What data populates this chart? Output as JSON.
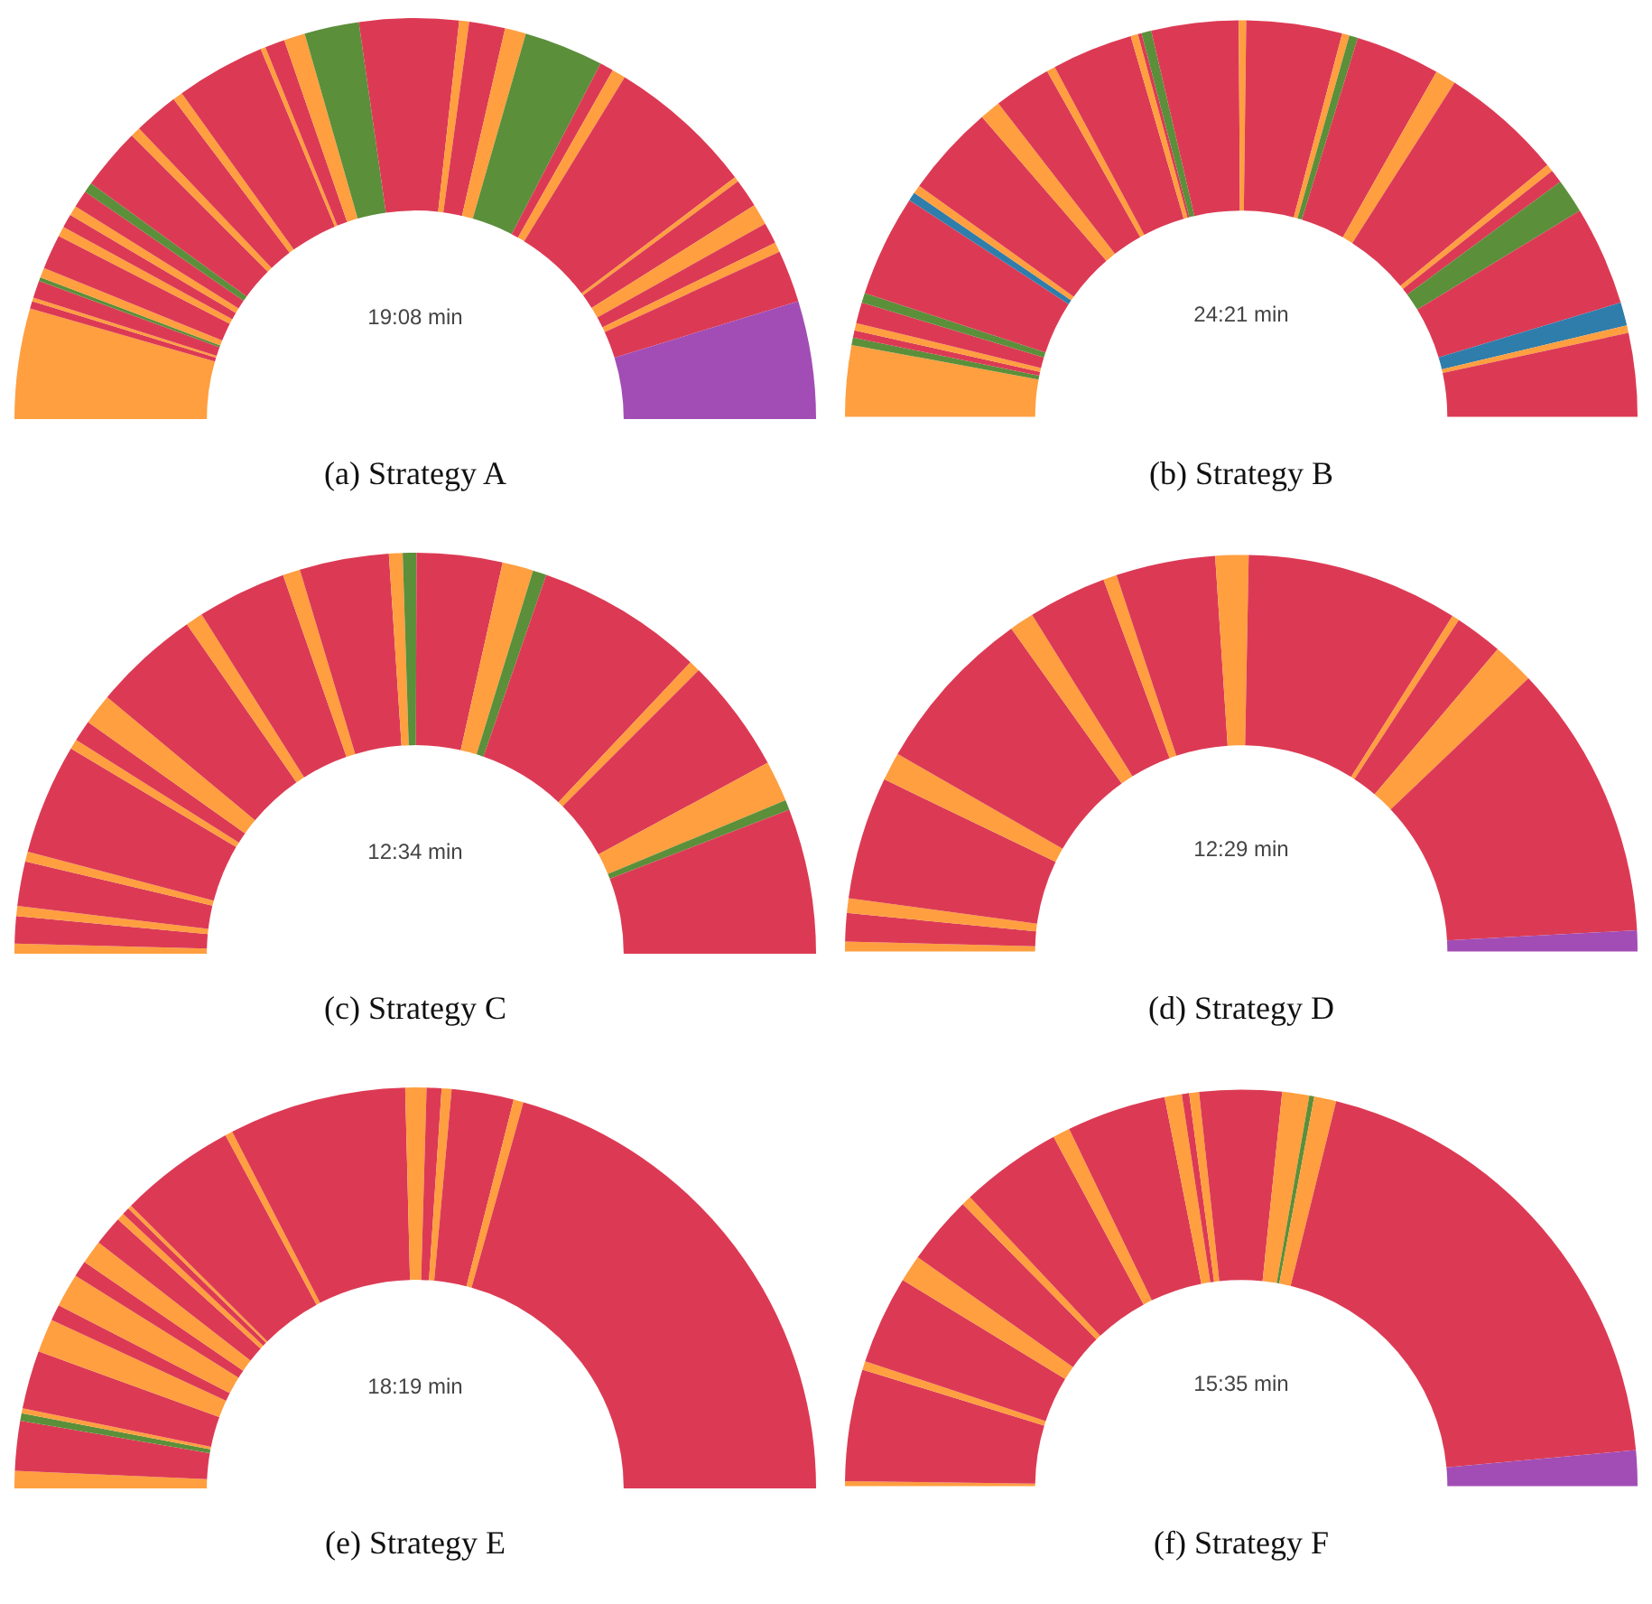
{
  "chart_data": [
    {
      "type": "donut",
      "title": "(a) Strategy A",
      "annotations": [
        "19:08 min"
      ],
      "categories": [
        null,
        null,
        null,
        null,
        null,
        null,
        null,
        null,
        null,
        null,
        null,
        null,
        null,
        null,
        null,
        null,
        null,
        null,
        null,
        null,
        null,
        null,
        null,
        null,
        null,
        null,
        null,
        null,
        null,
        null,
        null,
        null,
        null,
        null,
        null,
        null
      ],
      "values": [
        8.9,
        0.6,
        0.3,
        1.4,
        0.3,
        0.8,
        2.8,
        0.8,
        1.1,
        0.8,
        1.4,
        0.8,
        5.0,
        0.8,
        3.6,
        0.8,
        7.2,
        0.4,
        1.6,
        1.7,
        4.4,
        8.0,
        0.8,
        2.9,
        1.7,
        6.4,
        1.1,
        1.1,
        11.9,
        0.4,
        2.3,
        1.7,
        1.7,
        0.8,
        4.2,
        9.5
      ],
      "colors": [
        "#ff9f40",
        "#dc3a54",
        "#ff9f40",
        "#dc3a54",
        "#5b8f3a",
        "#ff9f40",
        "#dc3a54",
        "#ff9f40",
        "#dc3a54",
        "#ff9f40",
        "#dc3a54",
        "#5b8f3a",
        "#dc3a54",
        "#ff9f40",
        "#dc3a54",
        "#ff9f40",
        "#dc3a54",
        "#ff9f40",
        "#dc3a54",
        "#ff9f40",
        "#5b8f3a",
        "#dc3a54",
        "#ff9f40",
        "#dc3a54",
        "#ff9f40",
        "#5b8f3a",
        "#dc3a54",
        "#ff9f40",
        "#dc3a54",
        "#ff9f40",
        "#dc3a54",
        "#ff9f40",
        "#dc3a54",
        "#ff9f40",
        "#dc3a54",
        "#a24db5"
      ]
    },
    {
      "type": "donut",
      "title": "(b) Strategy B",
      "annotations": [
        "24:21 min"
      ],
      "categories": [
        null,
        null,
        null,
        null,
        null,
        null,
        null,
        null,
        null,
        null,
        null,
        null,
        null,
        null,
        null,
        null,
        null,
        null,
        null,
        null,
        null,
        null,
        null,
        null,
        null,
        null,
        null,
        null,
        null,
        null,
        null,
        null
      ],
      "values": [
        5.8,
        0.6,
        0.6,
        0.6,
        1.7,
        0.8,
        8.3,
        0.7,
        0.7,
        7.5,
        1.7,
        4.7,
        0.7,
        6.6,
        0.6,
        0.3,
        0.8,
        7.1,
        0.6,
        7.8,
        0.6,
        0.7,
        6.9,
        1.7,
        10.0,
        0.6,
        1.1,
        2.8,
        8.1,
        1.9,
        0.6,
        6.8
      ],
      "colors": [
        "#ff9f40",
        "#5b8f3a",
        "#dc3a54",
        "#ff9f40",
        "#dc3a54",
        "#5b8f3a",
        "#dc3a54",
        "#2f7dab",
        "#ff9f40",
        "#dc3a54",
        "#ff9f40",
        "#dc3a54",
        "#ff9f40",
        "#dc3a54",
        "#ff9f40",
        "#dc3a54",
        "#5b8f3a",
        "#dc3a54",
        "#ff9f40",
        "#dc3a54",
        "#ff9f40",
        "#5b8f3a",
        "#dc3a54",
        "#ff9f40",
        "#dc3a54",
        "#ff9f40",
        "#dc3a54",
        "#5b8f3a",
        "#dc3a54",
        "#2f7dab",
        "#ff9f40",
        "#dc3a54"
      ]
    },
    {
      "type": "donut",
      "title": "(c) Strategy C",
      "annotations": [
        "12:34 min"
      ],
      "categories": [
        null,
        null,
        null,
        null,
        null,
        null,
        null,
        null,
        null,
        null,
        null,
        null,
        null,
        null,
        null,
        null,
        null,
        null,
        null,
        null,
        null,
        null,
        null,
        null,
        null
      ],
      "values": [
        0.8,
        2.2,
        0.8,
        3.6,
        0.8,
        8.9,
        0.8,
        1.7,
        2.5,
        8.6,
        1.4,
        7.2,
        1.4,
        7.2,
        1.1,
        1.1,
        6.9,
        2.5,
        1.1,
        13.5,
        0.9,
        9.2,
        3.3,
        0.8,
        11.7
      ],
      "colors": [
        "#ff9f40",
        "#dc3a54",
        "#ff9f40",
        "#dc3a54",
        "#ff9f40",
        "#dc3a54",
        "#ff9f40",
        "#dc3a54",
        "#ff9f40",
        "#dc3a54",
        "#ff9f40",
        "#dc3a54",
        "#ff9f40",
        "#dc3a54",
        "#ff9f40",
        "#5b8f3a",
        "#dc3a54",
        "#ff9f40",
        "#5b8f3a",
        "#dc3a54",
        "#ff9f40",
        "#dc3a54",
        "#ff9f40",
        "#5b8f3a",
        "#dc3a54"
      ]
    },
    {
      "type": "donut",
      "title": "(d) Strategy D",
      "annotations": [
        "12:29 min"
      ],
      "categories": [
        null,
        null,
        null,
        null,
        null,
        null,
        null,
        null,
        null,
        null,
        null,
        null,
        null,
        null,
        null,
        null,
        null
      ],
      "values": [
        0.8,
        2.3,
        1.2,
        10.0,
        2.3,
        13.7,
        2.0,
        6.4,
        1.1,
        8.1,
        2.7,
        17.3,
        0.6,
        3.9,
        3.4,
        22.5,
        1.7
      ],
      "colors": [
        "#ff9f40",
        "#dc3a54",
        "#ff9f40",
        "#dc3a54",
        "#ff9f40",
        "#dc3a54",
        "#ff9f40",
        "#dc3a54",
        "#ff9f40",
        "#dc3a54",
        "#ff9f40",
        "#dc3a54",
        "#ff9f40",
        "#dc3a54",
        "#ff9f40",
        "#dc3a54",
        "#a24db5"
      ]
    },
    {
      "type": "donut",
      "title": "(e) Strategy E",
      "annotations": [
        "18:19 min"
      ],
      "categories": [
        null,
        null,
        null,
        null,
        null,
        null,
        null,
        null,
        null,
        null,
        null,
        null,
        null,
        null,
        null,
        null,
        null,
        null,
        null,
        null,
        null,
        null,
        null
      ],
      "values": [
        1.4,
        4.0,
        0.6,
        0.4,
        4.7,
        2.7,
        1.3,
        2.7,
        1.3,
        1.9,
        2.4,
        0.6,
        0.6,
        0.3,
        9.4,
        0.6,
        14.3,
        1.7,
        1.2,
        0.8,
        5.0,
        0.8,
        41.3
      ],
      "colors": [
        "#ff9f40",
        "#dc3a54",
        "#5b8f3a",
        "#ff9f40",
        "#dc3a54",
        "#ff9f40",
        "#dc3a54",
        "#ff9f40",
        "#dc3a54",
        "#ff9f40",
        "#dc3a54",
        "#ff9f40",
        "#dc3a54",
        "#ff9f40",
        "#dc3a54",
        "#ff9f40",
        "#dc3a54",
        "#ff9f40",
        "#dc3a54",
        "#ff9f40",
        "#dc3a54",
        "#ff9f40",
        "#dc3a54"
      ]
    },
    {
      "type": "donut",
      "title": "(f) Strategy F",
      "annotations": [
        "15:35 min"
      ],
      "categories": [
        null,
        null,
        null,
        null,
        null,
        null,
        null,
        null,
        null,
        null,
        null,
        null,
        null,
        null,
        null,
        null,
        null,
        null,
        null
      ],
      "values": [
        0.4,
        9.1,
        0.7,
        7.2,
        2.2,
        5.6,
        0.8,
        8.3,
        1.4,
        8.1,
        1.4,
        0.6,
        0.8,
        6.7,
        2.2,
        0.4,
        1.8,
        39.4,
        2.9
      ],
      "colors": [
        "#ff9f40",
        "#dc3a54",
        "#ff9f40",
        "#dc3a54",
        "#ff9f40",
        "#dc3a54",
        "#ff9f40",
        "#dc3a54",
        "#ff9f40",
        "#dc3a54",
        "#ff9f40",
        "#dc3a54",
        "#ff9f40",
        "#dc3a54",
        "#ff9f40",
        "#5b8f3a",
        "#ff9f40",
        "#dc3a54",
        "#a24db5"
      ]
    }
  ]
}
